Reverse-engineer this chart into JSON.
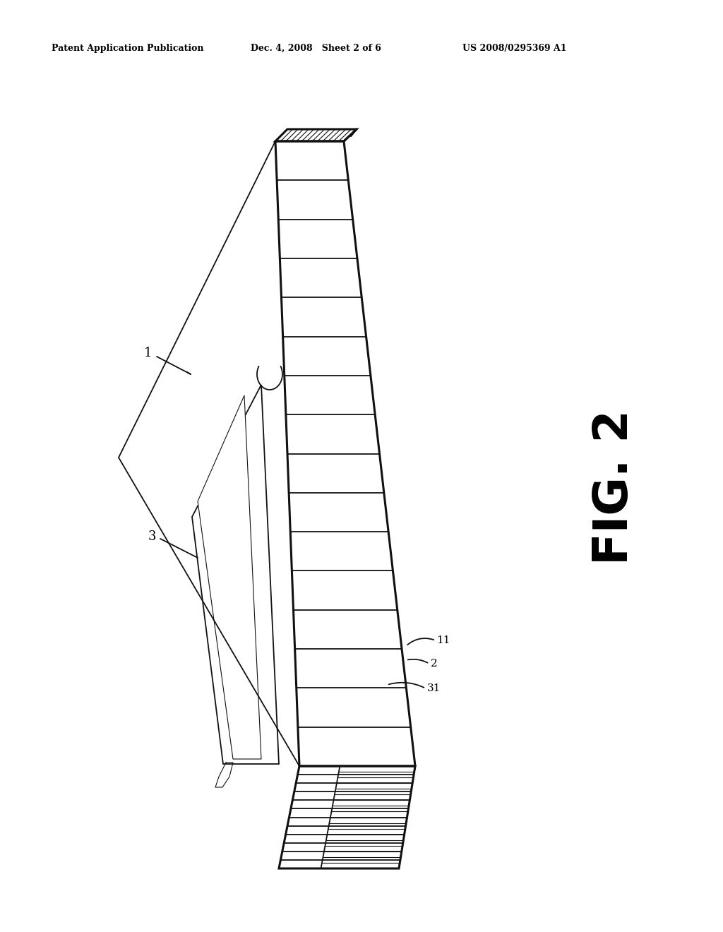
{
  "bg_color": "#ffffff",
  "header_left": "Patent Application Publication",
  "header_mid": "Dec. 4, 2008   Sheet 2 of 6",
  "header_right": "US 2008/0295369 A1",
  "fig_label": "FIG. 2",
  "label_1": "1",
  "label_2": "2",
  "label_3": "3",
  "label_11": "11",
  "label_31": "31",
  "line_color": "#111111",
  "lw_thin": 0.8,
  "lw_mid": 1.3,
  "lw_thick": 2.2,
  "num_stack_lines": 15,
  "num_bind_lines": 11
}
